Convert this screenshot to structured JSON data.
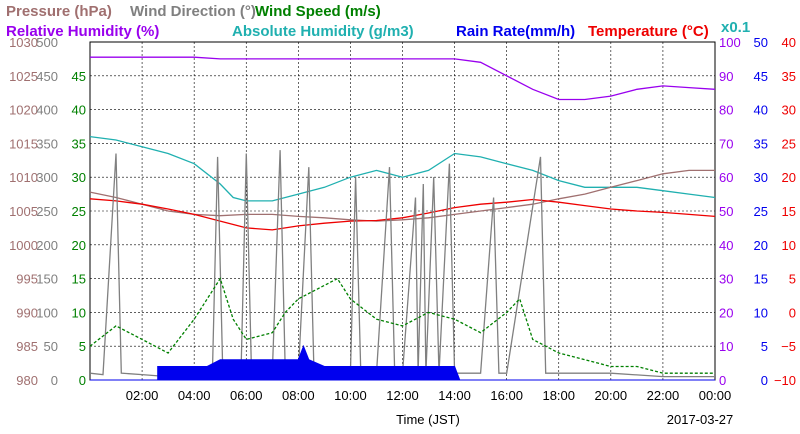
{
  "chart_data": {
    "type": "line",
    "date": "2017-03-27",
    "xlabel": "Time (JST)",
    "x_ticks": [
      "02:00",
      "04:00",
      "06:00",
      "08:00",
      "10:00",
      "12:00",
      "14:00",
      "16:00",
      "18:00",
      "20:00",
      "22:00",
      "00:00"
    ],
    "xlim_hours": [
      0,
      24
    ],
    "grid": true,
    "scale_note": "x0.1",
    "axes": [
      {
        "name": "Pressure (hPa)",
        "color": "#a07070",
        "ticks": [
          "1030",
          "1025",
          "1020",
          "1015",
          "1010",
          "1005",
          "1000",
          "995",
          "990",
          "985",
          "980"
        ],
        "ylim": [
          980,
          1030
        ]
      },
      {
        "name": "Wind Direction (°)",
        "color": "#808080",
        "ticks": [
          "500",
          "450",
          "400",
          "350",
          "300",
          "250",
          "200",
          "150",
          "100",
          "50",
          "0"
        ],
        "ylim": [
          0,
          500
        ]
      },
      {
        "name": "Wind Speed (m/s)",
        "color": "#008000",
        "ticks": [
          "45",
          "40",
          "35",
          "30",
          "25",
          "20",
          "15",
          "10",
          "5",
          "0"
        ],
        "ylim": [
          0,
          50
        ]
      },
      {
        "name": "Relative Humidity (%)",
        "color": "#9900ee",
        "ticks": [
          "100",
          "90",
          "80",
          "70",
          "60",
          "50",
          "40",
          "30",
          "20",
          "10",
          "0"
        ],
        "ylim": [
          0,
          100
        ]
      },
      {
        "name": "Absolute Humidity (g/m3)",
        "color": "#20b0b0"
      },
      {
        "name": "Rain Rate(mm/h)",
        "color": "#0000ee",
        "ticks": [
          "50",
          "45",
          "40",
          "35",
          "30",
          "25",
          "20",
          "15",
          "10",
          "5",
          "0"
        ],
        "ylim": [
          0,
          50
        ]
      },
      {
        "name": "Temperature (°C)",
        "color": "#ee0000",
        "ticks": [
          "40",
          "35",
          "30",
          "25",
          "20",
          "15",
          "10",
          "5",
          "0",
          "−5",
          "−10"
        ],
        "ylim": [
          -10,
          40
        ]
      }
    ],
    "series": [
      {
        "name": "Relative Humidity (%)",
        "color": "#9900ee",
        "points": [
          [
            0,
            95.5
          ],
          [
            2,
            95.5
          ],
          [
            4,
            95.5
          ],
          [
            5,
            95
          ],
          [
            6,
            95
          ],
          [
            8,
            95
          ],
          [
            10,
            95
          ],
          [
            12,
            95
          ],
          [
            14,
            95
          ],
          [
            15,
            94
          ],
          [
            16,
            90
          ],
          [
            17,
            86
          ],
          [
            18,
            83
          ],
          [
            19,
            83
          ],
          [
            20,
            84
          ],
          [
            21,
            86
          ],
          [
            22,
            87
          ],
          [
            23,
            86.5
          ],
          [
            24,
            86
          ]
        ]
      },
      {
        "name": "Absolute Humidity (g/m3)",
        "color": "#20b0b0",
        "points": [
          [
            0,
            36
          ],
          [
            1,
            35.5
          ],
          [
            2,
            34.5
          ],
          [
            3,
            33.5
          ],
          [
            4,
            32
          ],
          [
            5,
            29
          ],
          [
            5.5,
            27
          ],
          [
            6,
            26.5
          ],
          [
            7,
            26.5
          ],
          [
            8,
            27.5
          ],
          [
            9,
            28.5
          ],
          [
            10,
            30
          ],
          [
            11,
            31
          ],
          [
            12,
            30
          ],
          [
            13,
            31
          ],
          [
            14,
            33.5
          ],
          [
            15,
            33
          ],
          [
            16,
            32
          ],
          [
            17,
            31
          ],
          [
            18,
            29.5
          ],
          [
            19,
            28.5
          ],
          [
            20,
            28.5
          ],
          [
            21,
            28.5
          ],
          [
            22,
            28
          ],
          [
            23,
            27.5
          ],
          [
            24,
            27
          ]
        ]
      },
      {
        "name": "Pressure (hPa)",
        "color": "#a07070",
        "points": [
          [
            0,
            1007.8
          ],
          [
            1,
            1007
          ],
          [
            2,
            1006
          ],
          [
            3,
            1005
          ],
          [
            4,
            1004.5
          ],
          [
            5,
            1004.3
          ],
          [
            6,
            1004.5
          ],
          [
            7,
            1004.5
          ],
          [
            8,
            1004.2
          ],
          [
            9,
            1004
          ],
          [
            10,
            1003.7
          ],
          [
            11,
            1003.5
          ],
          [
            12,
            1003.7
          ],
          [
            13,
            1004
          ],
          [
            14,
            1004.5
          ],
          [
            15,
            1005
          ],
          [
            16,
            1005.5
          ],
          [
            17,
            1006
          ],
          [
            18,
            1006.8
          ],
          [
            19,
            1007.5
          ],
          [
            20,
            1008.5
          ],
          [
            21,
            1009.5
          ],
          [
            22,
            1010.5
          ],
          [
            23,
            1011
          ],
          [
            24,
            1011
          ]
        ]
      },
      {
        "name": "Temperature (°C)",
        "color": "#ee0000",
        "points": [
          [
            0,
            16.8
          ],
          [
            1,
            16.5
          ],
          [
            2,
            16
          ],
          [
            3,
            15.3
          ],
          [
            4,
            14.5
          ],
          [
            5,
            13.5
          ],
          [
            6,
            12.5
          ],
          [
            7,
            12.2
          ],
          [
            8,
            12.8
          ],
          [
            9,
            13.2
          ],
          [
            10,
            13.5
          ],
          [
            11,
            13.6
          ],
          [
            12,
            14
          ],
          [
            13,
            14.7
          ],
          [
            14,
            15.5
          ],
          [
            15,
            16
          ],
          [
            16,
            16.3
          ],
          [
            17,
            16.7
          ],
          [
            18,
            16.3
          ],
          [
            19,
            15.8
          ],
          [
            20,
            15.3
          ],
          [
            21,
            15
          ],
          [
            22,
            14.8
          ],
          [
            23,
            14.5
          ],
          [
            24,
            14.2
          ]
        ]
      },
      {
        "name": "Wind Direction (°)",
        "color": "#808080",
        "points": [
          [
            0,
            10
          ],
          [
            0.5,
            8
          ],
          [
            1,
            335
          ],
          [
            1.2,
            10
          ],
          [
            2,
            8
          ],
          [
            3,
            5
          ],
          [
            4,
            10
          ],
          [
            4.7,
            10
          ],
          [
            4.9,
            330
          ],
          [
            5.1,
            10
          ],
          [
            5.8,
            10
          ],
          [
            6,
            335
          ],
          [
            6.2,
            10
          ],
          [
            7,
            10
          ],
          [
            7.3,
            340
          ],
          [
            7.5,
            10
          ],
          [
            8,
            10
          ],
          [
            8.4,
            315
          ],
          [
            8.6,
            10
          ],
          [
            9,
            10
          ],
          [
            10,
            10
          ],
          [
            10.2,
            300
          ],
          [
            10.4,
            10
          ],
          [
            11,
            10
          ],
          [
            11.5,
            315
          ],
          [
            11.7,
            10
          ],
          [
            12,
            10
          ],
          [
            12.5,
            270
          ],
          [
            12.6,
            10
          ],
          [
            12.8,
            290
          ],
          [
            12.9,
            10
          ],
          [
            13.2,
            300
          ],
          [
            13.4,
            10
          ],
          [
            13.8,
            320
          ],
          [
            14,
            10
          ],
          [
            15,
            10
          ],
          [
            15.5,
            270
          ],
          [
            15.7,
            10
          ],
          [
            16,
            10
          ],
          [
            17.3,
            330
          ],
          [
            17.5,
            10
          ],
          [
            18,
            10
          ],
          [
            20,
            10
          ],
          [
            22,
            5
          ],
          [
            24,
            5
          ]
        ]
      },
      {
        "name": "Wind Speed (m/s)",
        "color": "#008000",
        "points": [
          [
            0,
            5
          ],
          [
            1,
            8
          ],
          [
            2,
            6
          ],
          [
            3,
            4
          ],
          [
            4,
            9
          ],
          [
            4.5,
            12
          ],
          [
            5,
            15
          ],
          [
            5.5,
            9
          ],
          [
            6,
            6
          ],
          [
            7,
            7
          ],
          [
            7.5,
            10
          ],
          [
            8,
            12
          ],
          [
            9,
            14
          ],
          [
            9.5,
            15
          ],
          [
            10,
            12
          ],
          [
            11,
            9
          ],
          [
            12,
            8
          ],
          [
            13,
            10
          ],
          [
            14,
            9
          ],
          [
            15,
            7
          ],
          [
            16,
            10
          ],
          [
            16.5,
            12
          ],
          [
            17,
            6
          ],
          [
            18,
            4
          ],
          [
            19,
            3
          ],
          [
            20,
            2
          ],
          [
            21,
            2
          ],
          [
            22,
            1
          ],
          [
            23,
            1
          ],
          [
            24,
            1
          ]
        ]
      },
      {
        "name": "Rain Rate(mm/h)",
        "color": "#0000ee",
        "points": [
          [
            0,
            0
          ],
          [
            2.6,
            0
          ],
          [
            2.6,
            2
          ],
          [
            4.5,
            2
          ],
          [
            5,
            3
          ],
          [
            6,
            3
          ],
          [
            8,
            3
          ],
          [
            8.2,
            5
          ],
          [
            8.4,
            3
          ],
          [
            9,
            2
          ],
          [
            10,
            2
          ],
          [
            11,
            2
          ],
          [
            12,
            2
          ],
          [
            13,
            2
          ],
          [
            14,
            2
          ],
          [
            14.2,
            0
          ],
          [
            24,
            0
          ]
        ]
      }
    ]
  }
}
